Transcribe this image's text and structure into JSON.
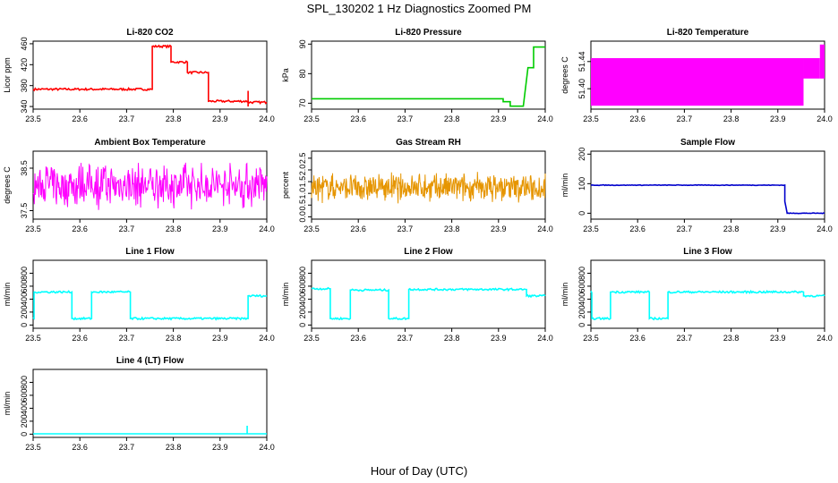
{
  "figure": {
    "title": "SPL_130202  1 Hz Diagnostics Zoomed PM",
    "xlabel": "Hour of Day (UTC)"
  },
  "chart_data": [
    {
      "type": "line",
      "title": "Li-820 CO2",
      "ylabel": "Licor ppm",
      "xlim": [
        23.5,
        24.0
      ],
      "ylim": [
        335,
        465
      ],
      "xticks": [
        "23.5",
        "23.6",
        "23.7",
        "23.8",
        "23.9",
        "24.0"
      ],
      "yticks": [
        "340",
        "380",
        "420",
        "460"
      ],
      "ytick_values": [
        340,
        380,
        420,
        460
      ],
      "color": "#ff0000",
      "noise": 2,
      "series": [
        {
          "x": [
            23.5,
            23.755,
            23.755,
            23.795,
            23.795,
            23.83,
            23.83,
            23.875,
            23.875,
            23.96,
            23.96,
            24.0
          ],
          "y": [
            373,
            373,
            455,
            455,
            425,
            425,
            405,
            405,
            350,
            350,
            348,
            348
          ]
        }
      ],
      "spikes": [
        {
          "x": 23.96,
          "y0": 340,
          "y1": 370
        }
      ]
    },
    {
      "type": "line",
      "title": "Li-820 Pressure",
      "ylabel": "kPa",
      "xlim": [
        23.5,
        24.0
      ],
      "ylim": [
        68,
        91
      ],
      "xticks": [
        "23.5",
        "23.6",
        "23.7",
        "23.8",
        "23.9",
        "24.0"
      ],
      "yticks": [
        "70",
        "80",
        "90"
      ],
      "ytick_values": [
        70,
        80,
        90
      ],
      "color": "#00cc00",
      "noise": 0,
      "series": [
        {
          "x": [
            23.5,
            23.91,
            23.91,
            23.925,
            23.925,
            23.953,
            23.96,
            23.963,
            23.975,
            23.975,
            24.0
          ],
          "y": [
            71.5,
            71.5,
            70.5,
            70.5,
            69,
            69,
            78,
            82,
            82,
            89,
            89
          ]
        }
      ]
    },
    {
      "type": "band",
      "title": "Li-820 Temperature",
      "ylabel": "degrees C",
      "xlim": [
        23.5,
        24.0
      ],
      "ylim": [
        51.37,
        51.47
      ],
      "xticks": [
        "23.5",
        "23.6",
        "23.7",
        "23.8",
        "23.9",
        "24.0"
      ],
      "yticks": [
        "51.40",
        "51.44"
      ],
      "ytick_values": [
        51.4,
        51.44
      ],
      "color": "#ff00ff",
      "band": [
        {
          "x0": 23.5,
          "x1": 23.955,
          "lo": 51.375,
          "hi": 51.445
        },
        {
          "x0": 23.955,
          "x1": 23.99,
          "lo": 51.415,
          "hi": 51.445
        },
        {
          "x0": 23.99,
          "x1": 24.0,
          "lo": 51.415,
          "hi": 51.465
        }
      ]
    },
    {
      "type": "line",
      "title": "Ambient Box Temperature",
      "ylabel": "degrees C",
      "xlim": [
        23.5,
        24.0
      ],
      "ylim": [
        37.3,
        38.9
      ],
      "xticks": [
        "23.5",
        "23.6",
        "23.7",
        "23.8",
        "23.9",
        "24.0"
      ],
      "yticks": [
        "37.5",
        "38.5"
      ],
      "ytick_values": [
        37.5,
        38.5
      ],
      "color": "#ff00ff",
      "noise_line": {
        "center": 38.1,
        "amp": 0.6,
        "n": 400
      }
    },
    {
      "type": "line",
      "title": "Gas Stream RH",
      "ylabel": "percent",
      "xlim": [
        23.5,
        24.0
      ],
      "ylim": [
        -0.1,
        2.8
      ],
      "xticks": [
        "23.5",
        "23.6",
        "23.7",
        "23.8",
        "23.9",
        "24.0"
      ],
      "yticks": [
        "0.0",
        "0.5",
        "1.0",
        "1.5",
        "2.0",
        "2.5"
      ],
      "ytick_values": [
        0,
        0.5,
        1,
        1.5,
        2,
        2.5
      ],
      "color": "#e69500",
      "noise_line": {
        "center": 1.25,
        "amp": 0.7,
        "n": 500
      }
    },
    {
      "type": "line",
      "title": "Sample Flow",
      "ylabel": "ml/min",
      "xlim": [
        23.5,
        24.0
      ],
      "ylim": [
        -20,
        210
      ],
      "xticks": [
        "23.5",
        "23.6",
        "23.7",
        "23.8",
        "23.9",
        "24.0"
      ],
      "yticks": [
        "0",
        "100",
        "200"
      ],
      "ytick_values": [
        0,
        100,
        200
      ],
      "color": "#0000cc",
      "noise": 1,
      "series": [
        {
          "x": [
            23.5,
            23.915,
            23.915,
            23.92,
            24.0
          ],
          "y": [
            95,
            95,
            40,
            0,
            0
          ]
        }
      ]
    },
    {
      "type": "line",
      "title": "Line 1 Flow",
      "ylabel": "ml/min",
      "xlim": [
        23.5,
        24.0
      ],
      "ylim": [
        -50,
        1000
      ],
      "xticks": [
        "23.5",
        "23.6",
        "23.7",
        "23.8",
        "23.9",
        "24.0"
      ],
      "yticks": [
        "0",
        "200",
        "400",
        "600",
        "800"
      ],
      "ytick_values": [
        0,
        200,
        400,
        600,
        800
      ],
      "color": "#00ffff",
      "noise": 15,
      "series": [
        {
          "x": [
            23.5,
            23.502,
            23.502,
            23.583,
            23.583,
            23.625,
            23.625,
            23.708,
            23.708,
            23.96,
            23.96,
            24.0
          ],
          "y": [
            100,
            100,
            510,
            510,
            100,
            100,
            510,
            510,
            100,
            100,
            450,
            450
          ]
        }
      ]
    },
    {
      "type": "line",
      "title": "Line 2 Flow",
      "ylabel": "ml/min",
      "xlim": [
        23.5,
        24.0
      ],
      "ylim": [
        -50,
        1000
      ],
      "xticks": [
        "23.5",
        "23.6",
        "23.7",
        "23.8",
        "23.9",
        "24.0"
      ],
      "yticks": [
        "0",
        "200",
        "400",
        "600",
        "800"
      ],
      "ytick_values": [
        0,
        200,
        400,
        600,
        800
      ],
      "color": "#00ffff",
      "noise": 15,
      "series": [
        {
          "x": [
            23.5,
            23.54,
            23.54,
            23.583,
            23.583,
            23.665,
            23.665,
            23.708,
            23.708,
            23.96,
            23.96,
            24.0
          ],
          "y": [
            560,
            560,
            100,
            100,
            540,
            540,
            100,
            100,
            550,
            550,
            450,
            450
          ]
        }
      ]
    },
    {
      "type": "line",
      "title": "Line 3 Flow",
      "ylabel": "ml/min",
      "xlim": [
        23.5,
        24.0
      ],
      "ylim": [
        -50,
        1000
      ],
      "xticks": [
        "23.5",
        "23.6",
        "23.7",
        "23.8",
        "23.9",
        "24.0"
      ],
      "yticks": [
        "0",
        "200",
        "400",
        "600",
        "800"
      ],
      "ytick_values": [
        0,
        200,
        400,
        600,
        800
      ],
      "color": "#00ffff",
      "noise": 15,
      "series": [
        {
          "x": [
            23.5,
            23.502,
            23.502,
            23.542,
            23.542,
            23.625,
            23.625,
            23.665,
            23.665,
            23.955,
            23.955,
            24.0
          ],
          "y": [
            500,
            500,
            100,
            100,
            510,
            510,
            100,
            100,
            510,
            510,
            450,
            450
          ]
        }
      ]
    },
    {
      "type": "line",
      "title": "Line 4 (LT) Flow",
      "ylabel": "ml/min",
      "xlim": [
        23.5,
        24.0
      ],
      "ylim": [
        -50,
        1000
      ],
      "xticks": [
        "23.5",
        "23.6",
        "23.7",
        "23.8",
        "23.9",
        "24.0"
      ],
      "yticks": [
        "0",
        "200",
        "400",
        "600",
        "800"
      ],
      "ytick_values": [
        0,
        200,
        400,
        600,
        800
      ],
      "color": "#00ffff",
      "noise": 0,
      "series": [
        {
          "x": [
            23.5,
            24.0
          ],
          "y": [
            5,
            5
          ]
        }
      ],
      "spikes": [
        {
          "x": 23.958,
          "y0": 5,
          "y1": 130
        }
      ]
    }
  ]
}
